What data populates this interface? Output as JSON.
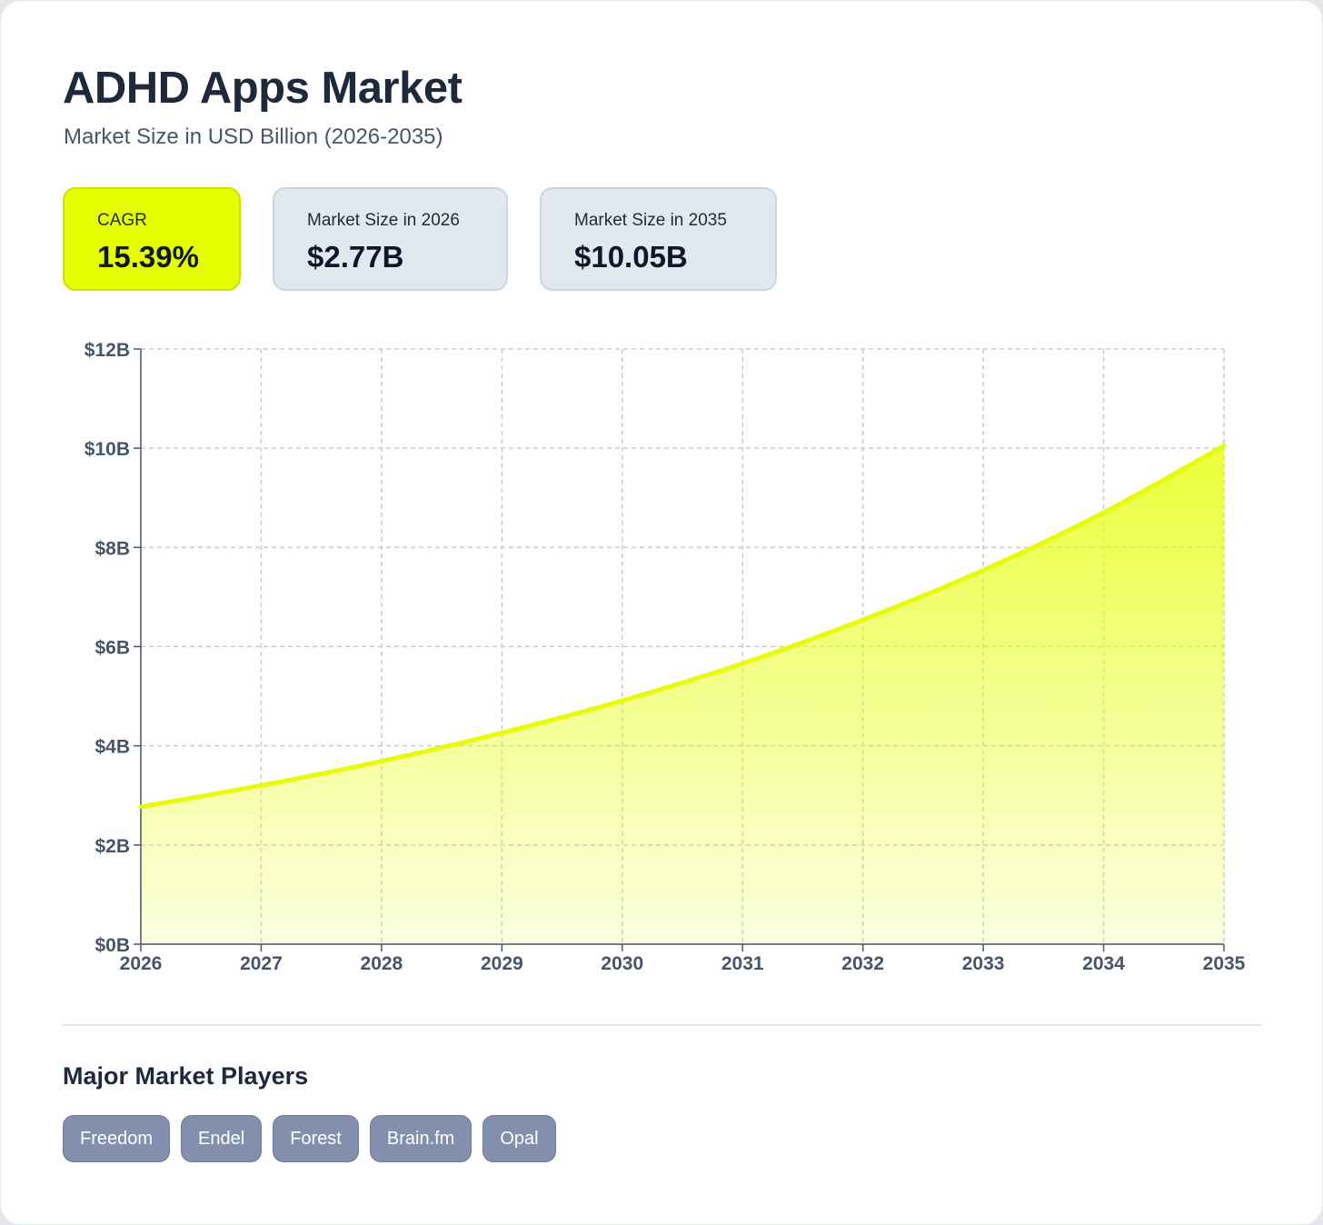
{
  "header": {
    "title": "ADHD Apps Market",
    "subtitle": "Market Size in USD Billion (2026-2035)"
  },
  "stats": [
    {
      "label": "CAGR",
      "value": "15.39%"
    },
    {
      "label": "Market Size in 2026",
      "value": "$2.77B"
    },
    {
      "label": "Market Size in 2035",
      "value": "$10.05B"
    }
  ],
  "colors": {
    "accent": "#e5ff00",
    "line": "#e8fb0a",
    "grid": "#c3cbd9",
    "axis": "#475569",
    "tag": "#8290ad"
  },
  "chart_data": {
    "type": "area",
    "x": [
      2026,
      2027,
      2028,
      2029,
      2030,
      2031,
      2032,
      2033,
      2034,
      2035
    ],
    "series": [
      {
        "values": [
          2.77,
          3.2,
          3.69,
          4.26,
          4.91,
          5.66,
          6.54,
          7.54,
          8.7,
          10.05
        ]
      }
    ],
    "yticks": [
      "$0B",
      "$2B",
      "$4B",
      "$6B",
      "$8B",
      "$10B",
      "$12B"
    ],
    "ylim": [
      0,
      12
    ],
    "grid": true,
    "grid_style": "dashed",
    "legend": "none"
  },
  "players": {
    "title": "Major Market Players",
    "items": [
      "Freedom",
      "Endel",
      "Forest",
      "Brain.fm",
      "Opal"
    ]
  }
}
